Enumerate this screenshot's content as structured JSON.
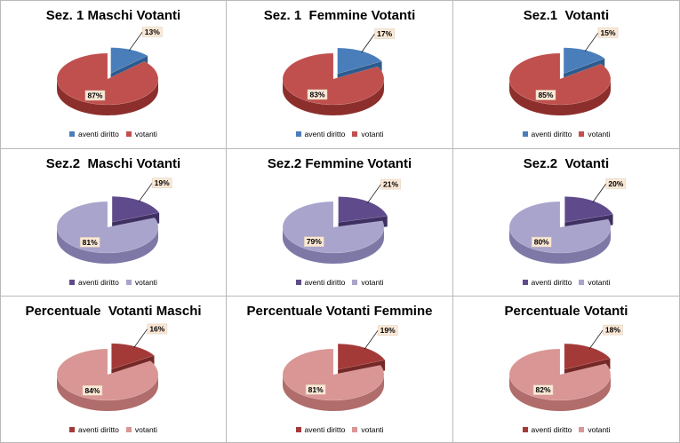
{
  "chart_data": [
    {
      "type": "pie",
      "title": "Sez. 1 Maschi Votanti",
      "categories": [
        "aventi diritto",
        "votanti"
      ],
      "values": [
        13,
        87
      ],
      "labels": [
        "13%",
        "87%"
      ],
      "colors": {
        "top": [
          "#4a7ebb",
          "#c0504d"
        ],
        "side": [
          "#2e5b8e",
          "#8c2f2c"
        ]
      },
      "legend_position": "bottom"
    },
    {
      "type": "pie",
      "title": "Sez. 1  Femmine Votanti",
      "categories": [
        "aventi diritto",
        "votanti"
      ],
      "values": [
        17,
        83
      ],
      "labels": [
        "17%",
        "83%"
      ],
      "colors": {
        "top": [
          "#4a7ebb",
          "#c0504d"
        ],
        "side": [
          "#2e5b8e",
          "#8c2f2c"
        ]
      },
      "legend_position": "bottom"
    },
    {
      "type": "pie",
      "title": "Sez.1  Votanti",
      "categories": [
        "aventi diritto",
        "votanti"
      ],
      "values": [
        15,
        85
      ],
      "labels": [
        "15%",
        "85%"
      ],
      "colors": {
        "top": [
          "#4a7ebb",
          "#c0504d"
        ],
        "side": [
          "#2e5b8e",
          "#8c2f2c"
        ]
      },
      "legend_position": "bottom"
    },
    {
      "type": "pie",
      "title": "Sez.2  Maschi Votanti",
      "categories": [
        "aventi diritto",
        "votanti"
      ],
      "values": [
        19,
        81
      ],
      "labels": [
        "19%",
        "81%"
      ],
      "colors": {
        "top": [
          "#5f4b8b",
          "#a9a4cc"
        ],
        "side": [
          "#3f3062",
          "#7e78a6"
        ]
      },
      "legend_position": "bottom"
    },
    {
      "type": "pie",
      "title": "Sez.2 Femmine Votanti",
      "categories": [
        "aventi diritto",
        "votanti"
      ],
      "values": [
        21,
        79
      ],
      "labels": [
        "21%",
        "79%"
      ],
      "colors": {
        "top": [
          "#5f4b8b",
          "#a9a4cc"
        ],
        "side": [
          "#3f3062",
          "#7e78a6"
        ]
      },
      "legend_position": "bottom"
    },
    {
      "type": "pie",
      "title": "Sez.2  Votanti",
      "categories": [
        "aventi diritto",
        "votanti"
      ],
      "values": [
        20,
        80
      ],
      "labels": [
        "20%",
        "80%"
      ],
      "colors": {
        "top": [
          "#5f4b8b",
          "#a9a4cc"
        ],
        "side": [
          "#3f3062",
          "#7e78a6"
        ]
      },
      "legend_position": "bottom"
    },
    {
      "type": "pie",
      "title": "Percentuale  Votanti Maschi",
      "categories": [
        "aventi diritto",
        "votanti"
      ],
      "values": [
        16,
        84
      ],
      "labels": [
        "16%",
        "84%"
      ],
      "colors": {
        "top": [
          "#a33a38",
          "#d99694"
        ],
        "side": [
          "#752826",
          "#b06d6b"
        ]
      },
      "legend_position": "bottom"
    },
    {
      "type": "pie",
      "title": "Percentuale Votanti Femmine",
      "categories": [
        "aventi diritto",
        "votanti"
      ],
      "values": [
        19,
        81
      ],
      "labels": [
        "19%",
        "81%"
      ],
      "colors": {
        "top": [
          "#a33a38",
          "#d99694"
        ],
        "side": [
          "#752826",
          "#b06d6b"
        ]
      },
      "legend_position": "bottom"
    },
    {
      "type": "pie",
      "title": "Percentuale Votanti",
      "categories": [
        "aventi diritto",
        "votanti"
      ],
      "values": [
        18,
        82
      ],
      "labels": [
        "18%",
        "82%"
      ],
      "colors": {
        "top": [
          "#a33a38",
          "#d99694"
        ],
        "side": [
          "#752826",
          "#b06d6b"
        ]
      },
      "legend_position": "bottom"
    }
  ]
}
